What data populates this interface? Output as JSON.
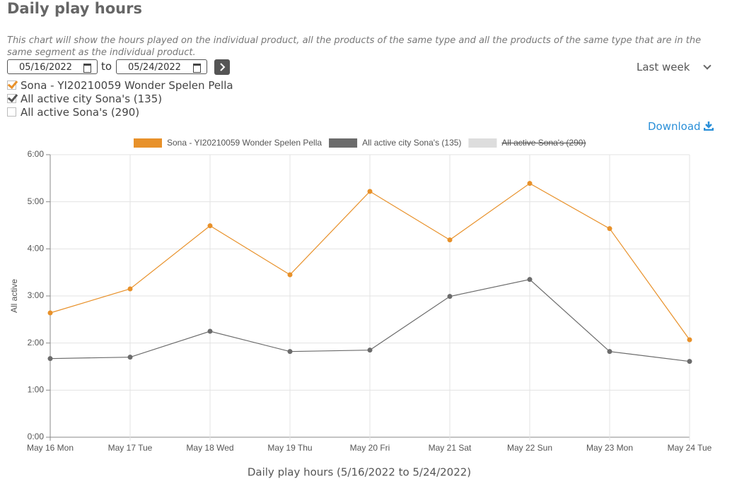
{
  "header": {
    "title": "Daily play hours",
    "description": "This chart will show the hours played on the individual product, all the products of the same type and all the products of the same type that are in the same segment as the individual product."
  },
  "filters": {
    "from": "05/16/2022",
    "to_label": "to",
    "to": "05/24/2022",
    "period": "Last week"
  },
  "options": [
    {
      "label": "Sona - YI20210059 Wonder Spelen Pella",
      "checked": true,
      "color": "#e8912a"
    },
    {
      "label": "All active city Sona's (135)",
      "checked": true,
      "color": "#555555"
    },
    {
      "label": "All active Sona's (290)",
      "checked": false,
      "color": "#cccccc"
    }
  ],
  "download": "Download",
  "chart_data": {
    "type": "line",
    "ylabel": "All active",
    "xlabel": "Daily play hours (5/16/2022 to 5/24/2022)",
    "categories": [
      "May 16 Mon",
      "May 17 Tue",
      "May 18 Wed",
      "May 19 Thu",
      "May 20 Fri",
      "May 21 Sat",
      "May 22 Sun",
      "May 23 Mon",
      "May 24 Tue"
    ],
    "series": [
      {
        "name": "Sona - YI20210059 Wonder Spelen Pella",
        "color": "#e8912a",
        "values": [
          2.64,
          3.15,
          4.49,
          3.45,
          5.22,
          4.19,
          5.39,
          4.43,
          2.07
        ]
      },
      {
        "name": "All active city Sona's (135)",
        "color": "#6b6b6b",
        "values": [
          1.67,
          1.7,
          2.25,
          1.82,
          1.85,
          2.99,
          3.35,
          1.82,
          1.61
        ]
      },
      {
        "name": "All active Sona's (290)",
        "color": "#dddddd",
        "hidden": true
      }
    ],
    "ylim": [
      0,
      6
    ],
    "yticks": [
      {
        "value": 0,
        "label": "0:00"
      },
      {
        "value": 1,
        "label": "1:00"
      },
      {
        "value": 2,
        "label": "2:00"
      },
      {
        "value": 3,
        "label": "3:00"
      },
      {
        "value": 4,
        "label": "4:00"
      },
      {
        "value": 5,
        "label": "5:00"
      },
      {
        "value": 6,
        "label": "6:00"
      }
    ],
    "grid": true
  }
}
